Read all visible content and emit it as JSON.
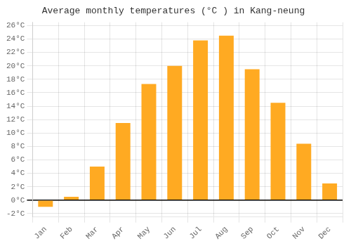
{
  "chart_data": {
    "type": "bar",
    "title": "Average monthly temperatures (°C ) in Kang-neung",
    "categories": [
      "Jan",
      "Feb",
      "Mar",
      "Apr",
      "May",
      "Jun",
      "Jul",
      "Aug",
      "Sep",
      "Oct",
      "Nov",
      "Dec"
    ],
    "values": [
      -1.0,
      0.5,
      5.0,
      11.5,
      17.3,
      20.0,
      23.8,
      24.5,
      19.5,
      14.5,
      8.4,
      2.5
    ],
    "color": "#FFAA22",
    "ylim": [
      -2.5,
      26.5
    ],
    "yticks": [
      {
        "value": -2,
        "label": "-2°C"
      },
      {
        "value": 0,
        "label": "0°C"
      },
      {
        "value": 2,
        "label": "2°C"
      },
      {
        "value": 4,
        "label": "4°C"
      },
      {
        "value": 6,
        "label": "6°C"
      },
      {
        "value": 8,
        "label": "8°C"
      },
      {
        "value": 10,
        "label": "10°C"
      },
      {
        "value": 12,
        "label": "12°C"
      },
      {
        "value": 14,
        "label": "14°C"
      },
      {
        "value": 16,
        "label": "16°C"
      },
      {
        "value": 18,
        "label": "18°C"
      },
      {
        "value": 20,
        "label": "20°C"
      },
      {
        "value": 22,
        "label": "22°C"
      },
      {
        "value": 24,
        "label": "24°C"
      },
      {
        "value": 26,
        "label": "26°C"
      }
    ],
    "grid": true
  }
}
